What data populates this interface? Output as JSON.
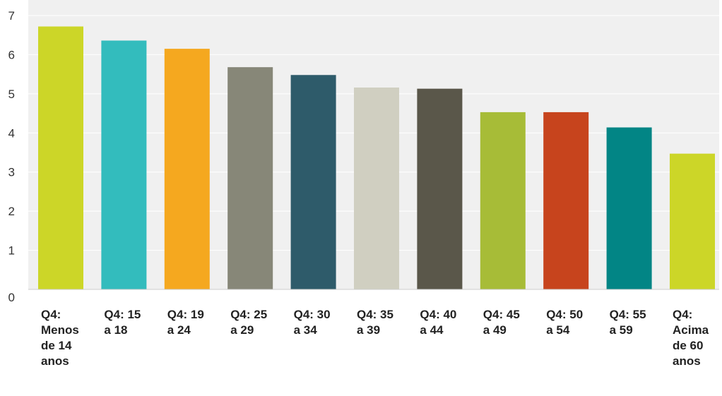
{
  "chart_data": {
    "type": "bar",
    "title": "",
    "xlabel": "",
    "ylabel": "",
    "ylim": [
      0,
      7
    ],
    "yticks": [
      "0",
      "1",
      "2",
      "3",
      "4",
      "5",
      "6",
      "7"
    ],
    "grid": true,
    "legend": "none",
    "categories": [
      "Q4: Menos de 14 anos",
      "Q4: 15 a 18",
      "Q4: 19 a 24",
      "Q4: 25 a 29",
      "Q4: 30 a 34",
      "Q4: 35 a 39",
      "Q4: 40 a 44",
      "Q4: 45 a 49",
      "Q4: 50 a 54",
      "Q4: 55 a 59",
      "Q4: Acima de 60 anos"
    ],
    "values": [
      6.72,
      6.36,
      6.15,
      5.68,
      5.48,
      5.16,
      5.13,
      4.53,
      4.53,
      4.14,
      3.47
    ],
    "colors": [
      "#ccd628",
      "#33bcbd",
      "#f5a81f",
      "#878778",
      "#2e5b6a",
      "#d0cfc1",
      "#5a574a",
      "#a7bc37",
      "#c7441d",
      "#028585",
      "#ccd628"
    ],
    "plot_background": "#f0f0f0",
    "grid_color": "#ffffff"
  }
}
